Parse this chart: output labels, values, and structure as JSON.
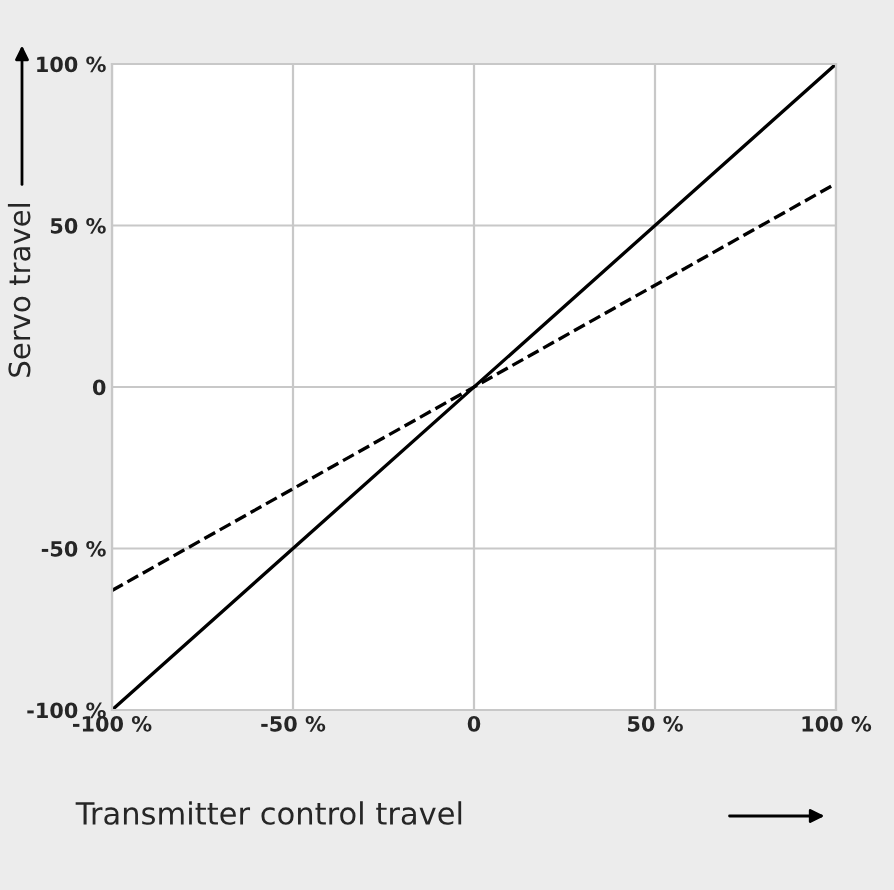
{
  "chart_data": {
    "type": "line",
    "xlabel": "Transmitter control travel",
    "ylabel": "Servo travel",
    "x": [
      -100,
      100
    ],
    "series": [
      {
        "color": "#000000",
        "values": [
          -100,
          100
        ],
        "line_style": "solid"
      },
      {
        "color": "#000000",
        "values": [
          -63,
          63
        ],
        "line_style": "dashed"
      }
    ],
    "xlim": [
      -100,
      100
    ],
    "ylim": [
      -100,
      100
    ],
    "xticks": [
      {
        "value": -100,
        "label": "-100 %"
      },
      {
        "value": -50,
        "label": "-50 %"
      },
      0,
      {
        "value": 50,
        "label": "50 %"
      },
      {
        "value": 100,
        "label": "100 %"
      }
    ],
    "yticks": [
      {
        "value": -100,
        "label": "-100 %"
      },
      {
        "value": -50,
        "label": "-50 %"
      },
      0,
      {
        "value": 50,
        "label": "50 %"
      },
      {
        "value": 100,
        "label": "100 %"
      }
    ],
    "grid": true,
    "legend": false,
    "marker": "none"
  }
}
